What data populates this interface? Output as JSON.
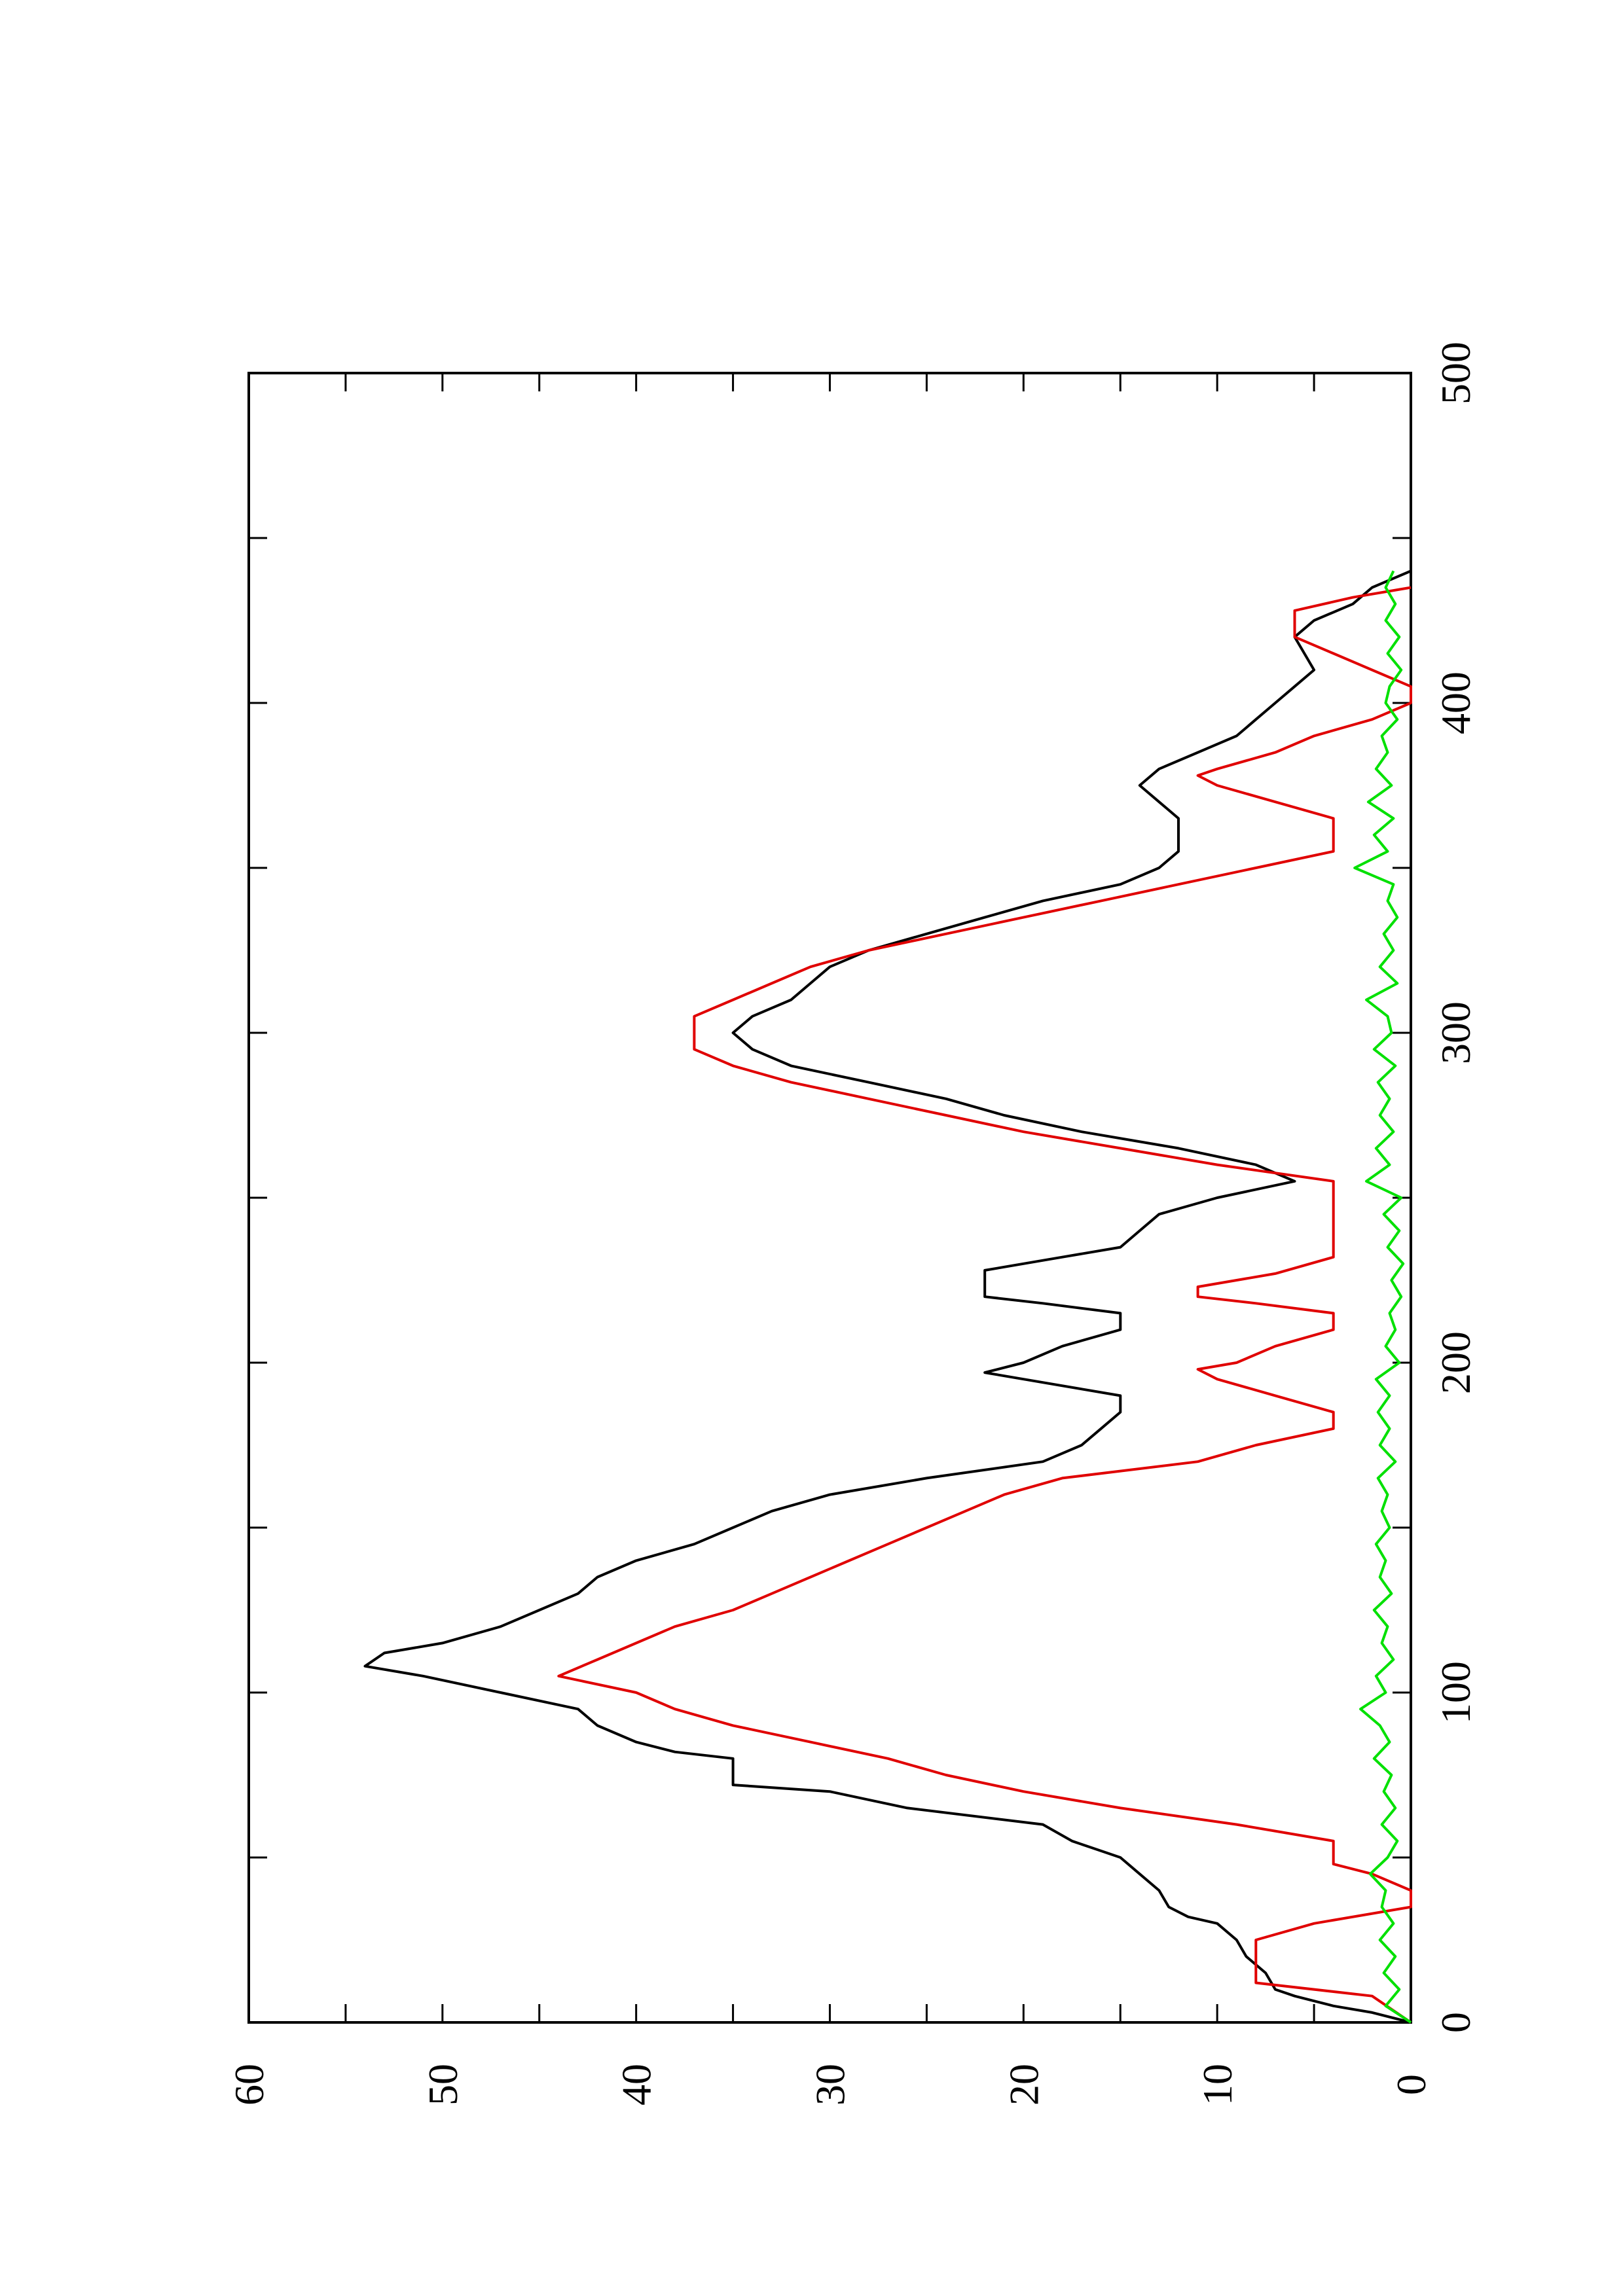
{
  "chart_data": {
    "type": "line",
    "orientation": "rotated-90-clockwise",
    "x_ticks": [
      "0",
      "100",
      "200",
      "300",
      "400",
      "500"
    ],
    "y_ticks": [
      "0",
      "10",
      "20",
      "30",
      "40",
      "50",
      "60"
    ],
    "xlim": [
      0,
      500
    ],
    "ylim": [
      0,
      60
    ],
    "grid": false,
    "colors": {
      "black": "#000000",
      "red": "#e00000",
      "green": "#00e000"
    },
    "series": [
      {
        "color": "#000000",
        "points": [
          [
            0,
            0
          ],
          [
            3,
            2
          ],
          [
            5,
            4
          ],
          [
            8,
            6
          ],
          [
            10,
            7
          ],
          [
            15,
            7.5
          ],
          [
            20,
            8.5
          ],
          [
            25,
            9
          ],
          [
            30,
            10
          ],
          [
            32,
            11.5
          ],
          [
            35,
            12.5
          ],
          [
            40,
            13
          ],
          [
            45,
            14
          ],
          [
            50,
            15
          ],
          [
            53,
            16.5
          ],
          [
            55,
            17.5
          ],
          [
            60,
            19
          ],
          [
            65,
            26
          ],
          [
            70,
            30
          ],
          [
            72,
            35
          ],
          [
            80,
            35
          ],
          [
            82,
            38
          ],
          [
            85,
            40
          ],
          [
            90,
            42
          ],
          [
            95,
            43
          ],
          [
            100,
            47
          ],
          [
            105,
            51
          ],
          [
            108,
            54
          ],
          [
            112,
            53
          ],
          [
            115,
            50
          ],
          [
            120,
            47
          ],
          [
            125,
            45
          ],
          [
            130,
            43
          ],
          [
            135,
            42
          ],
          [
            140,
            40
          ],
          [
            145,
            37
          ],
          [
            150,
            35
          ],
          [
            155,
            33
          ],
          [
            160,
            30
          ],
          [
            165,
            25
          ],
          [
            170,
            19
          ],
          [
            175,
            17
          ],
          [
            180,
            16
          ],
          [
            185,
            15
          ],
          [
            190,
            15
          ],
          [
            192,
            17
          ],
          [
            195,
            20
          ],
          [
            197,
            22
          ],
          [
            200,
            20
          ],
          [
            205,
            18
          ],
          [
            210,
            15
          ],
          [
            215,
            15
          ],
          [
            218,
            19
          ],
          [
            220,
            22
          ],
          [
            228,
            22
          ],
          [
            232,
            18
          ],
          [
            235,
            15
          ],
          [
            240,
            14
          ],
          [
            245,
            13
          ],
          [
            250,
            10
          ],
          [
            255,
            6
          ],
          [
            260,
            8
          ],
          [
            265,
            12
          ],
          [
            270,
            17
          ],
          [
            275,
            21
          ],
          [
            280,
            24
          ],
          [
            285,
            28
          ],
          [
            290,
            32
          ],
          [
            295,
            34
          ],
          [
            300,
            35
          ],
          [
            305,
            34
          ],
          [
            310,
            32
          ],
          [
            315,
            31
          ],
          [
            320,
            30
          ],
          [
            325,
            28
          ],
          [
            330,
            25
          ],
          [
            335,
            22
          ],
          [
            340,
            19
          ],
          [
            345,
            15
          ],
          [
            350,
            13
          ],
          [
            355,
            12
          ],
          [
            360,
            12
          ],
          [
            365,
            12
          ],
          [
            370,
            13
          ],
          [
            375,
            14
          ],
          [
            380,
            13
          ],
          [
            385,
            11
          ],
          [
            390,
            9
          ],
          [
            395,
            8
          ],
          [
            400,
            7
          ],
          [
            405,
            6
          ],
          [
            410,
            5
          ],
          [
            415,
            5.5
          ],
          [
            420,
            6
          ],
          [
            425,
            5
          ],
          [
            430,
            3
          ],
          [
            435,
            2
          ],
          [
            440,
            0
          ]
        ]
      },
      {
        "color": "#e00000",
        "points": [
          [
            0,
            0
          ],
          [
            8,
            2
          ],
          [
            12,
            8
          ],
          [
            22,
            8
          ],
          [
            25,
            8
          ],
          [
            30,
            5
          ],
          [
            35,
            0
          ],
          [
            40,
            0
          ],
          [
            45,
            2
          ],
          [
            48,
            4
          ],
          [
            55,
            4
          ],
          [
            60,
            9
          ],
          [
            65,
            15
          ],
          [
            70,
            20
          ],
          [
            75,
            24
          ],
          [
            80,
            27
          ],
          [
            85,
            31
          ],
          [
            90,
            35
          ],
          [
            95,
            38
          ],
          [
            100,
            40
          ],
          [
            105,
            44
          ],
          [
            110,
            42
          ],
          [
            115,
            40
          ],
          [
            120,
            38
          ],
          [
            125,
            35
          ],
          [
            130,
            33
          ],
          [
            135,
            31
          ],
          [
            140,
            29
          ],
          [
            145,
            27
          ],
          [
            150,
            25
          ],
          [
            155,
            23
          ],
          [
            160,
            21
          ],
          [
            165,
            18
          ],
          [
            170,
            11
          ],
          [
            175,
            8
          ],
          [
            180,
            4
          ],
          [
            185,
            4
          ],
          [
            190,
            7
          ],
          [
            195,
            10
          ],
          [
            198,
            11
          ],
          [
            200,
            9
          ],
          [
            205,
            7
          ],
          [
            210,
            4
          ],
          [
            215,
            4
          ],
          [
            218,
            8
          ],
          [
            220,
            11
          ],
          [
            223,
            11
          ],
          [
            227,
            7
          ],
          [
            232,
            4
          ],
          [
            255,
            4
          ],
          [
            260,
            10
          ],
          [
            265,
            15
          ],
          [
            270,
            20
          ],
          [
            275,
            24
          ],
          [
            280,
            28
          ],
          [
            285,
            32
          ],
          [
            290,
            35
          ],
          [
            295,
            37
          ],
          [
            300,
            37
          ],
          [
            305,
            37
          ],
          [
            310,
            35
          ],
          [
            315,
            33
          ],
          [
            320,
            31
          ],
          [
            325,
            28
          ],
          [
            330,
            24
          ],
          [
            335,
            20
          ],
          [
            340,
            16
          ],
          [
            345,
            12
          ],
          [
            350,
            8
          ],
          [
            355,
            4
          ],
          [
            360,
            4
          ],
          [
            365,
            4
          ],
          [
            370,
            7
          ],
          [
            375,
            10
          ],
          [
            378,
            11
          ],
          [
            380,
            10
          ],
          [
            385,
            7
          ],
          [
            390,
            5
          ],
          [
            395,
            2
          ],
          [
            400,
            0
          ],
          [
            405,
            0
          ],
          [
            410,
            2
          ],
          [
            415,
            4
          ],
          [
            420,
            6
          ],
          [
            428,
            6
          ],
          [
            432,
            3
          ],
          [
            435,
            0
          ]
        ]
      },
      {
        "color": "#00e000",
        "points": [
          [
            0,
            0
          ],
          [
            5,
            1.3
          ],
          [
            10,
            0.6
          ],
          [
            15,
            1.4
          ],
          [
            20,
            0.8
          ],
          [
            25,
            1.6
          ],
          [
            30,
            0.9
          ],
          [
            35,
            1.5
          ],
          [
            40,
            1.3
          ],
          [
            45,
            2.1
          ],
          [
            50,
            1.2
          ],
          [
            55,
            0.7
          ],
          [
            60,
            1.5
          ],
          [
            65,
            0.8
          ],
          [
            70,
            1.4
          ],
          [
            75,
            1
          ],
          [
            80,
            1.9
          ],
          [
            85,
            1.1
          ],
          [
            90,
            1.6
          ],
          [
            95,
            2.6
          ],
          [
            100,
            1.3
          ],
          [
            105,
            1.8
          ],
          [
            110,
            0.9
          ],
          [
            115,
            1.5
          ],
          [
            120,
            1.2
          ],
          [
            125,
            1.9
          ],
          [
            130,
            1
          ],
          [
            135,
            1.6
          ],
          [
            140,
            1.3
          ],
          [
            145,
            1.8
          ],
          [
            150,
            1.1
          ],
          [
            155,
            1.5
          ],
          [
            160,
            1.2
          ],
          [
            165,
            1.7
          ],
          [
            170,
            0.8
          ],
          [
            175,
            1.6
          ],
          [
            180,
            1.1
          ],
          [
            185,
            1.7
          ],
          [
            190,
            1.1
          ],
          [
            195,
            1.8
          ],
          [
            200,
            0.6
          ],
          [
            205,
            1.3
          ],
          [
            210,
            0.8
          ],
          [
            215,
            1.1
          ],
          [
            220,
            0.5
          ],
          [
            225,
            1
          ],
          [
            230,
            0.4
          ],
          [
            235,
            1.2
          ],
          [
            240,
            0.6
          ],
          [
            245,
            1.4
          ],
          [
            250,
            0.5
          ],
          [
            255,
            2.3
          ],
          [
            260,
            1.1
          ],
          [
            265,
            1.8
          ],
          [
            270,
            0.9
          ],
          [
            275,
            1.6
          ],
          [
            280,
            1.1
          ],
          [
            285,
            1.7
          ],
          [
            290,
            0.8
          ],
          [
            295,
            1.9
          ],
          [
            300,
            1
          ],
          [
            305,
            1.2
          ],
          [
            310,
            2.3
          ],
          [
            315,
            0.7
          ],
          [
            320,
            1.6
          ],
          [
            325,
            0.9
          ],
          [
            330,
            1.4
          ],
          [
            335,
            0.7
          ],
          [
            340,
            1.2
          ],
          [
            345,
            0.9
          ],
          [
            350,
            2.9
          ],
          [
            355,
            1.2
          ],
          [
            360,
            1.9
          ],
          [
            365,
            0.9
          ],
          [
            370,
            2.2
          ],
          [
            375,
            1
          ],
          [
            380,
            1.8
          ],
          [
            385,
            1.2
          ],
          [
            390,
            1.5
          ],
          [
            395,
            0.7
          ],
          [
            400,
            1.3
          ],
          [
            405,
            1.1
          ],
          [
            410,
            0.5
          ],
          [
            415,
            1.2
          ],
          [
            420,
            0.6
          ],
          [
            425,
            1.3
          ],
          [
            430,
            0.8
          ],
          [
            435,
            1.3
          ],
          [
            440,
            0.9
          ]
        ]
      }
    ]
  }
}
